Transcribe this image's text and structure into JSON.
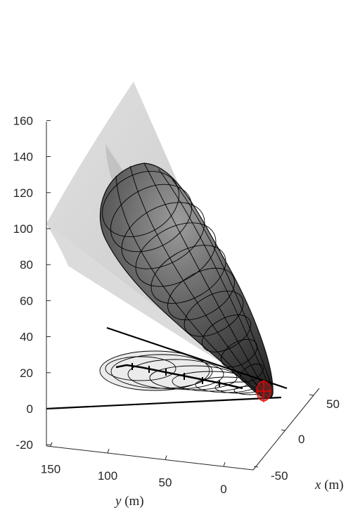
{
  "chart_data": {
    "type": "surface3d",
    "title": "",
    "axes": {
      "z": {
        "label": "",
        "ticks": [
          -20,
          0,
          20,
          40,
          60,
          80,
          100,
          120,
          140,
          160
        ],
        "range": [
          -20,
          160
        ]
      },
      "y": {
        "label_var": "y",
        "label_unit": "(m)",
        "ticks": [
          150,
          100,
          50,
          0
        ]
      },
      "x": {
        "label_var": "x",
        "label_unit": "(m)",
        "ticks": [
          50,
          0,
          -50
        ]
      }
    },
    "grid": false,
    "legend": "none",
    "elements": [
      {
        "name": "translucent-cone",
        "color": "#c4c4c4"
      },
      {
        "name": "dark-ellipsoid-surface",
        "color": "#3a3a3a"
      },
      {
        "name": "black-wireframe-loops",
        "color": "#000000"
      },
      {
        "name": "ground-projection-ellipses",
        "color": "#000000"
      },
      {
        "name": "red-origin-frame",
        "color": "#ff0000"
      }
    ]
  }
}
